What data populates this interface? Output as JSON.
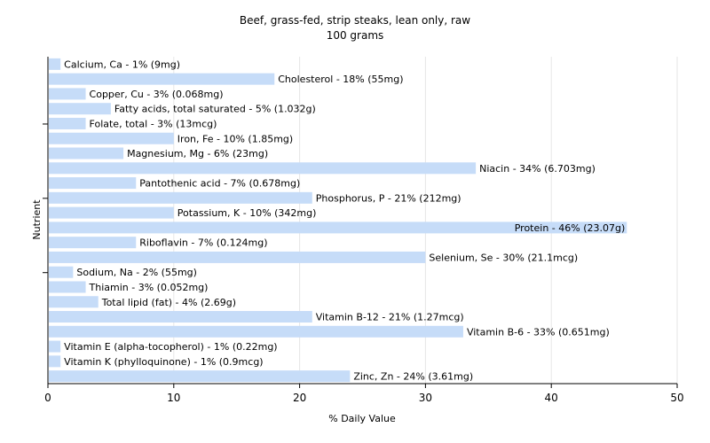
{
  "chart_data": {
    "type": "bar",
    "orientation": "horizontal",
    "title": "Beef, grass-fed, strip steaks, lean only, raw",
    "subtitle": "100 grams",
    "xlabel": "% Daily Value",
    "ylabel": "Nutrient",
    "xlim": [
      0,
      50
    ],
    "xticks": [
      0,
      10,
      20,
      30,
      40,
      50
    ],
    "grid": true,
    "bar_color": "#c6dcf8",
    "grid_color": "#e6e6e6",
    "categories": [
      "Calcium, Ca",
      "Cholesterol",
      "Copper, Cu",
      "Fatty acids, total saturated",
      "Folate, total",
      "Iron, Fe",
      "Magnesium, Mg",
      "Niacin",
      "Pantothenic acid",
      "Phosphorus, P",
      "Potassium, K",
      "Protein",
      "Riboflavin",
      "Selenium, Se",
      "Sodium, Na",
      "Thiamin",
      "Total lipid (fat)",
      "Vitamin B-12",
      "Vitamin B-6",
      "Vitamin E (alpha-tocopherol)",
      "Vitamin K (phylloquinone)",
      "Zinc, Zn"
    ],
    "values": [
      1,
      18,
      3,
      5,
      3,
      10,
      6,
      34,
      7,
      21,
      10,
      46,
      7,
      30,
      2,
      3,
      4,
      21,
      33,
      1,
      1,
      24
    ],
    "labels": [
      "Calcium, Ca - 1% (9mg)",
      "Cholesterol - 18% (55mg)",
      "Copper, Cu - 3% (0.068mg)",
      "Fatty acids, total saturated - 5% (1.032g)",
      "Folate, total - 3% (13mcg)",
      "Iron, Fe - 10% (1.85mg)",
      "Magnesium, Mg - 6% (23mg)",
      "Niacin - 34% (6.703mg)",
      "Pantothenic acid - 7% (0.678mg)",
      "Phosphorus, P - 21% (212mg)",
      "Potassium, K - 10% (342mg)",
      "Protein - 46% (23.07g)",
      "Riboflavin - 7% (0.124mg)",
      "Selenium, Se - 30% (21.1mcg)",
      "Sodium, Na - 2% (55mg)",
      "Thiamin - 3% (0.052mg)",
      "Total lipid (fat) - 4% (2.69g)",
      "Vitamin B-12 - 21% (1.27mcg)",
      "Vitamin B-6 - 33% (0.651mg)",
      "Vitamin E (alpha-tocopherol) - 1% (0.22mg)",
      "Vitamin K (phylloquinone) - 1% (0.9mcg)",
      "Zinc, Zn - 24% (3.61mg)"
    ],
    "label_inside": [
      false,
      false,
      false,
      false,
      false,
      false,
      false,
      false,
      false,
      false,
      false,
      true,
      false,
      false,
      false,
      false,
      false,
      false,
      false,
      false,
      false,
      false
    ]
  }
}
